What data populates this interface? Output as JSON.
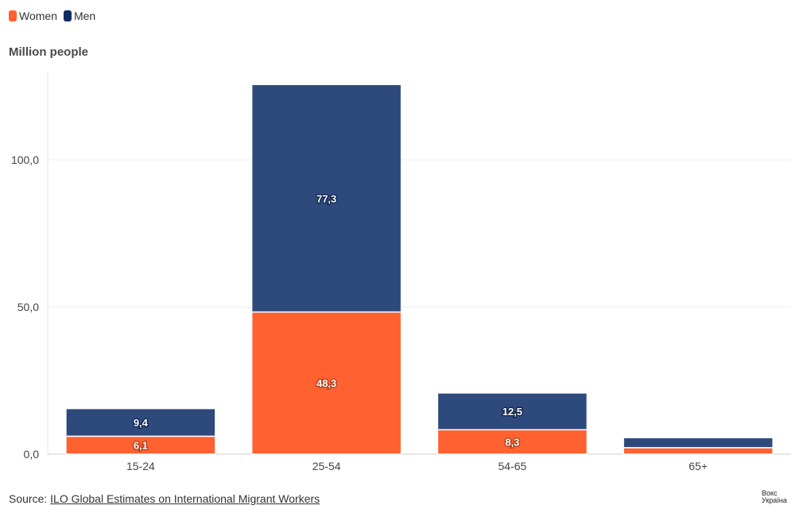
{
  "legend": [
    {
      "name": "Women",
      "color": "#ff6130"
    },
    {
      "name": "Men",
      "color": "#2e4a7d"
    }
  ],
  "source": {
    "prefix": "Source: ",
    "link": "ILO Global Estimates on International Migrant Workers"
  },
  "logo": [
    "Вокс",
    "Україна"
  ],
  "chart_data": {
    "type": "bar",
    "stacked": true,
    "ylabel": "Million people",
    "categories": [
      "15-24",
      "25-54",
      "54-65",
      "65+"
    ],
    "series": [
      {
        "name": "Women",
        "color": "#ff6130",
        "values": [
          6.1,
          48.3,
          8.3,
          2.2
        ],
        "labels": [
          "6,1",
          "48,3",
          "8,3",
          ""
        ]
      },
      {
        "name": "Men",
        "color": "#2e4a7d",
        "values": [
          9.4,
          77.3,
          12.5,
          3.4
        ],
        "labels": [
          "9,4",
          "77,3",
          "12,5",
          ""
        ]
      }
    ],
    "yticks": [
      0,
      50,
      100
    ],
    "ytick_labels": [
      "0,0",
      "50,0",
      "100,0"
    ],
    "ylim": [
      0,
      130
    ],
    "grid": true,
    "legend_position": "top-left"
  }
}
